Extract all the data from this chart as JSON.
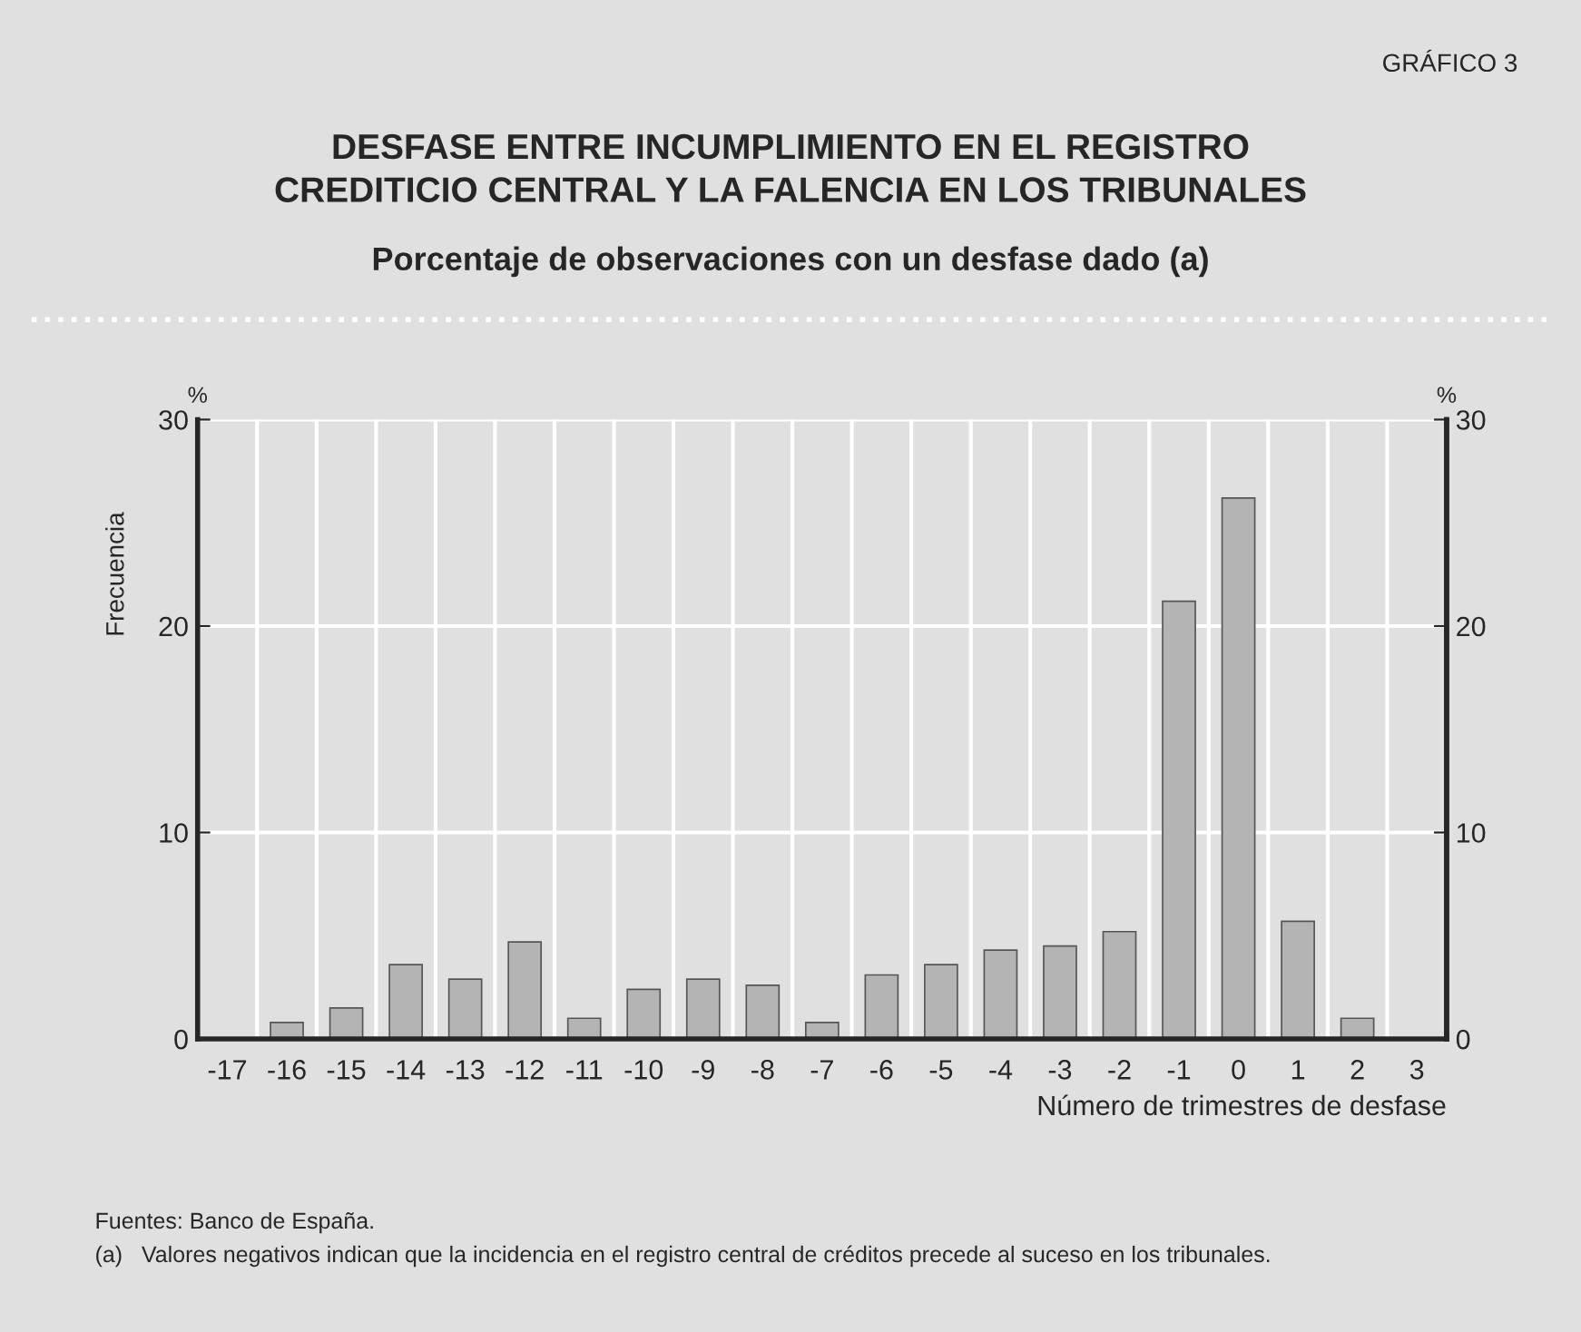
{
  "chart_data": {
    "type": "bar",
    "title": "DESFASE ENTRE INCUMPLIMIENTO EN EL REGISTRO\nCREDITICIO CENTRAL Y LA FALENCIA EN LOS TRIBUNALES",
    "subtitle": "Porcentaje de observaciones con un desfase dado (a)",
    "xlabel": "Número de trimestres de desfase",
    "ylabel": "Frecuencia",
    "annotations": [
      "GRÁFICO 3",
      "%",
      "%",
      "Fuentes: Banco de España.",
      "(a)   Valores negativos indican que la incidencia en el registro central de créditos precede al suceso en los tribunales."
    ],
    "categories": [
      "-17",
      "-16",
      "-15",
      "-14",
      "-13",
      "-12",
      "-11",
      "-10",
      "-9",
      "-8",
      "-7",
      "-6",
      "-5",
      "-4",
      "-3",
      "-2",
      "-1",
      "0",
      "1",
      "2",
      "3"
    ],
    "values": [
      null,
      0.8,
      1.5,
      3.6,
      2.9,
      4.7,
      1.0,
      2.4,
      2.9,
      2.6,
      0.8,
      3.1,
      3.6,
      4.3,
      4.5,
      5.2,
      21.2,
      26.2,
      5.7,
      1.0,
      null
    ],
    "color": "#b4b4b4",
    "ylim": [
      0,
      30
    ],
    "yticks": [
      0,
      10,
      20,
      30
    ],
    "y2lim": [
      0,
      30
    ],
    "y2ticks": [
      0,
      10,
      20,
      30
    ],
    "grid": true
  }
}
